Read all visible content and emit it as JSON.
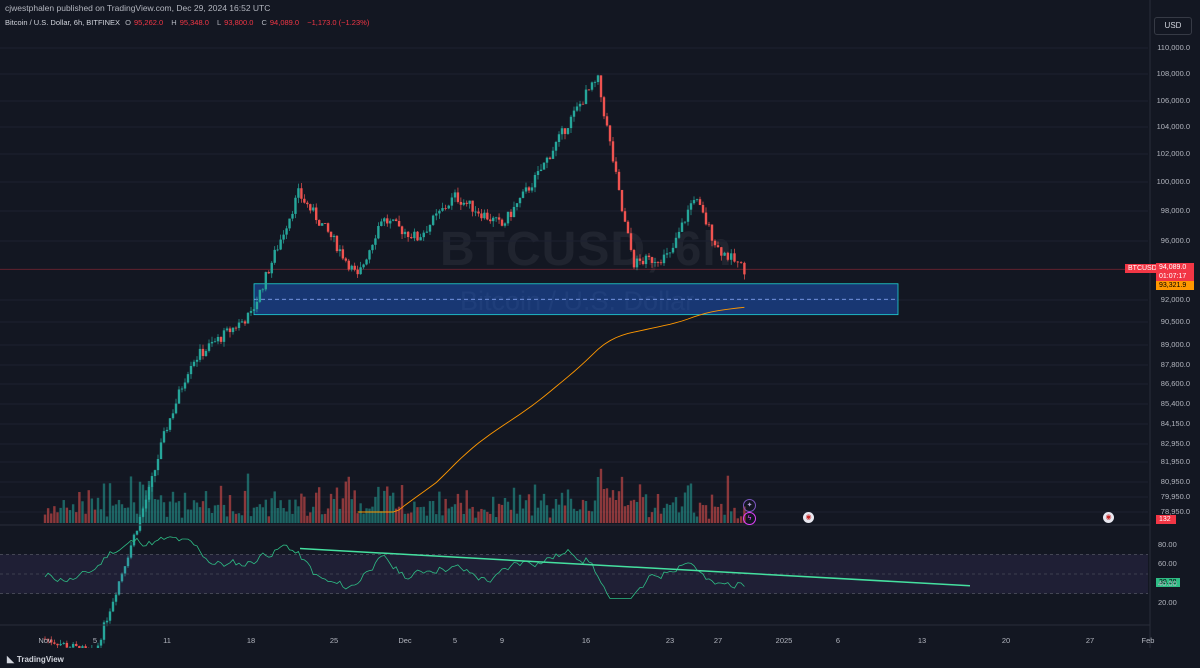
{
  "header": {
    "published_text": "cjwestphalen published on TradingView.com, Dec 29, 2024 16:52 UTC",
    "symbol_name": "Bitcoin / U.S. Dollar, 6h, BITFINEX",
    "ohlc": [
      {
        "label": "O",
        "value": "95,262.0"
      },
      {
        "label": "H",
        "value": "95,348.0"
      },
      {
        "label": "L",
        "value": "93,800.0"
      },
      {
        "label": "C",
        "value": "94,089.0"
      },
      {
        "label": "",
        "value": "−1,173.0 (−1.23%)"
      }
    ],
    "currency": "USD"
  },
  "watermark": {
    "symbol": "BTCUSD, 6h",
    "name": "Bitcoin / U.S. Dollar"
  },
  "price_axis_ticks": [
    "110,000.0",
    "108,000.0",
    "106,000.0",
    "104,000.0",
    "102,000.0",
    "100,000.0",
    "98,000.0",
    "96,000.0",
    "92,000.0",
    "90,500.0",
    "89,000.0",
    "87,800.0",
    "86,600.0",
    "85,400.0",
    "84,150.0",
    "82,950.0",
    "81,950.0",
    "80,950.0",
    "79,950.0",
    "78,950.0"
  ],
  "price_tags": {
    "symbol": "BTCUSD",
    "last_price": "94,089.0",
    "countdown": "01:07:17",
    "ma_value": "93,321.9",
    "volume": "132",
    "rsi": "39.38"
  },
  "rsi_axis_ticks": [
    "80.00",
    "60.00",
    "40.00",
    "20.00"
  ],
  "time_axis_ticks": [
    "Nov",
    "5",
    "11",
    "18",
    "25",
    "Dec",
    "5",
    "9",
    "16",
    "23",
    "27",
    "2025",
    "6",
    "13",
    "20",
    "27",
    "Feb"
  ],
  "footer": {
    "logo_text": "TradingView"
  },
  "colors": {
    "up": "#26a69a",
    "down": "#ef5350",
    "ma": "#ff9800",
    "zone": "#1e5fd6",
    "rsi": "#2ebd85",
    "trendline": "#45e0a0"
  },
  "chart_data": {
    "type": "candlestick",
    "symbol": "BTCUSD",
    "interval": "6h",
    "close_approx": [
      {
        "date": "2024-11-01",
        "close": 70500
      },
      {
        "date": "2024-11-05",
        "close": 69500
      },
      {
        "date": "2024-11-11",
        "close": 84000
      },
      {
        "date": "2024-11-13",
        "close": 88000
      },
      {
        "date": "2024-11-18",
        "close": 91000
      },
      {
        "date": "2024-11-22",
        "close": 99200
      },
      {
        "date": "2024-11-25",
        "close": 96000
      },
      {
        "date": "2024-11-27",
        "close": 93500
      },
      {
        "date": "2024-11-29",
        "close": 97500
      },
      {
        "date": "2024-12-02",
        "close": 96200
      },
      {
        "date": "2024-12-05",
        "close": 99000
      },
      {
        "date": "2024-12-09",
        "close": 97000
      },
      {
        "date": "2024-12-12",
        "close": 100500
      },
      {
        "date": "2024-12-16",
        "close": 106500
      },
      {
        "date": "2024-12-17",
        "close": 107500
      },
      {
        "date": "2024-12-19",
        "close": 98000
      },
      {
        "date": "2024-12-20",
        "close": 94500
      },
      {
        "date": "2024-12-23",
        "close": 95000
      },
      {
        "date": "2024-12-25",
        "close": 99000
      },
      {
        "date": "2024-12-27",
        "close": 95500
      },
      {
        "date": "2024-12-29",
        "close": 94089
      }
    ],
    "support_zone": [
      91000,
      93100
    ],
    "moving_average_last": 93321.9,
    "rsi_last": 39.38,
    "volume_last": 132
  }
}
